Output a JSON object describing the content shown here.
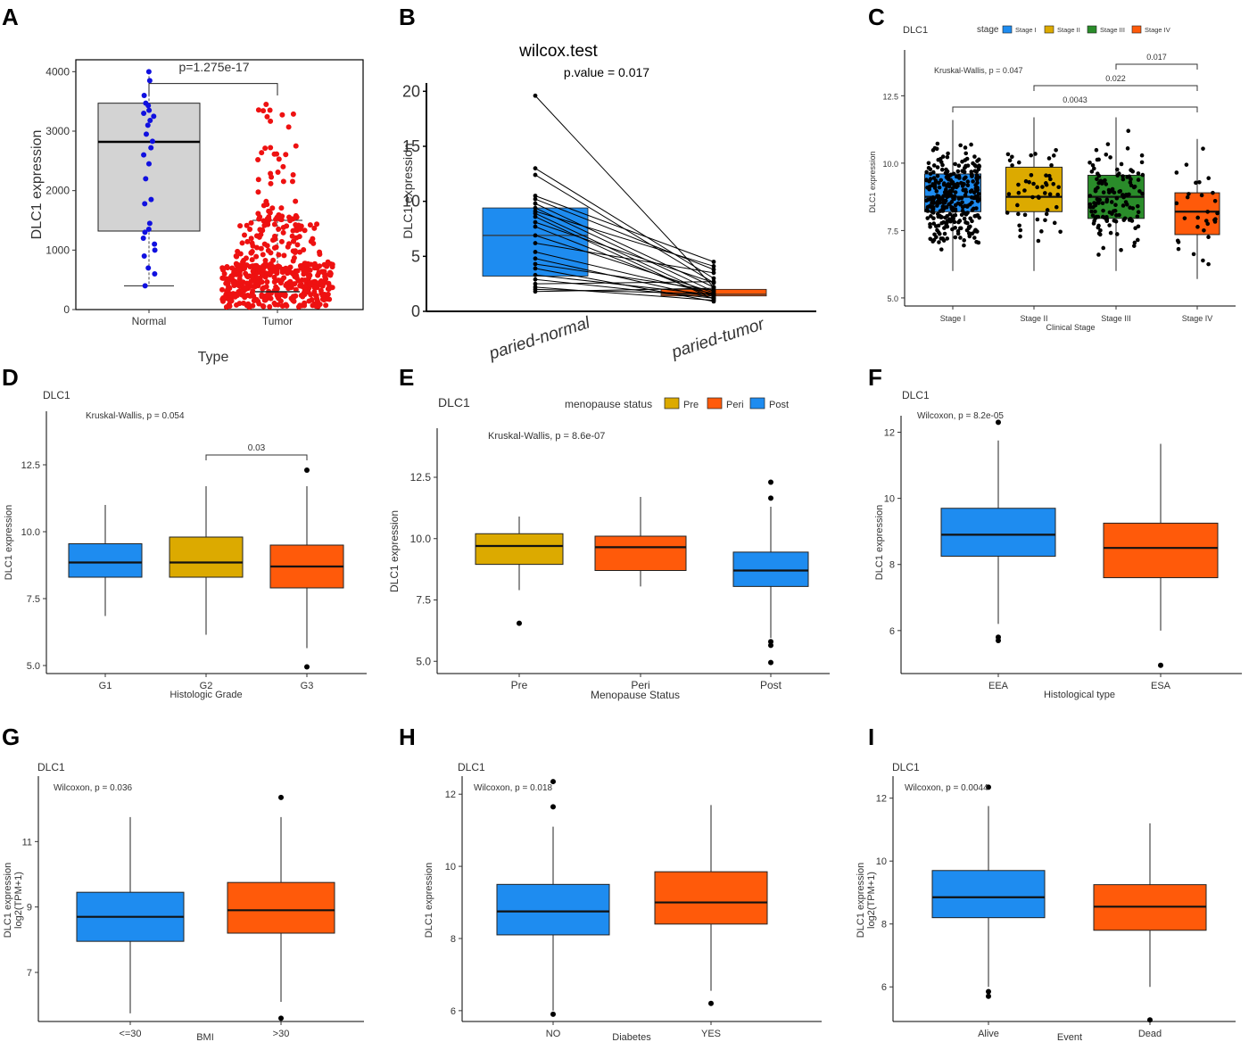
{
  "chart_data": [
    {
      "panel": "A",
      "type": "box",
      "ylabel": "DLC1 expression",
      "xlabel": "Type",
      "categories": [
        "Normal",
        "Tumor"
      ],
      "ylim": [
        0,
        4200
      ],
      "yticks": [
        0,
        1000,
        2000,
        3000,
        4000
      ],
      "boxes": [
        {
          "q1": 1320,
          "median": 2820,
          "q3": 3470,
          "lo": 400,
          "hi": 4000,
          "color": "#d3d3d3"
        },
        {
          "q1": 120,
          "median": 300,
          "q3": 760,
          "lo": 20,
          "hi": 1500,
          "color": null
        }
      ],
      "point_colors": [
        "#1010e0",
        "#ee1111"
      ],
      "annotations": [
        {
          "text": "p=1.275e-17"
        }
      ]
    },
    {
      "panel": "B",
      "type": "paired-box",
      "title": "wilcox.test",
      "subtitle": "p.value = 0.017",
      "ylabel": "DLC1 expression",
      "categories": [
        "paried-normal",
        "paried-tumor"
      ],
      "ylim": [
        0,
        21
      ],
      "yticks": [
        0,
        5,
        10,
        15,
        20
      ],
      "boxes": [
        {
          "q1": 3.2,
          "median": 6.9,
          "q3": 9.4,
          "color": "#1e8cf0"
        },
        {
          "q1": 1.4,
          "median": 1.55,
          "q3": 2.0,
          "color": "#ff5a0a"
        }
      ],
      "pairs": [
        [
          19.6,
          2.2
        ],
        [
          13.0,
          3.0
        ],
        [
          12.4,
          2.6
        ],
        [
          10.5,
          4.5
        ],
        [
          10.2,
          3.8
        ],
        [
          9.8,
          2.2
        ],
        [
          9.4,
          1.8
        ],
        [
          9.1,
          4.1
        ],
        [
          8.9,
          1.4
        ],
        [
          8.6,
          1.1
        ],
        [
          8.1,
          2.6
        ],
        [
          7.7,
          1.3
        ],
        [
          6.9,
          1.7
        ],
        [
          6.2,
          3.5
        ],
        [
          5.4,
          1.6
        ],
        [
          4.8,
          1.2
        ],
        [
          4.3,
          1.9
        ],
        [
          3.9,
          0.9
        ],
        [
          3.3,
          1.5
        ],
        [
          2.9,
          1.2
        ],
        [
          2.5,
          2.7
        ],
        [
          2.2,
          1.0
        ],
        [
          2.0,
          1.6
        ],
        [
          1.8,
          2.1
        ]
      ]
    },
    {
      "panel": "C",
      "type": "box",
      "title": "DLC1",
      "ylabel": "DLC1 expression",
      "xlabel": "Clinical Stage",
      "legend_title": "stage",
      "legend": [
        "Stage I",
        "Stage II",
        "Stage III",
        "Stage IV"
      ],
      "categories": [
        "Stage I",
        "Stage II",
        "Stage III",
        "Stage IV"
      ],
      "ylim": [
        4.7,
        14.2
      ],
      "yticks": [
        5.0,
        7.5,
        10.0,
        12.5
      ],
      "ytick_labels": [
        "5.0",
        "7.5",
        "10.0",
        "12.5"
      ],
      "boxes": [
        {
          "q1": 8.2,
          "median": 8.75,
          "q3": 9.6,
          "lo": 6.0,
          "hi": 11.6,
          "color": "#1e8cf0"
        },
        {
          "q1": 8.2,
          "median": 8.75,
          "q3": 9.85,
          "lo": 6.0,
          "hi": 11.7,
          "color": "#dcaa00"
        },
        {
          "q1": 7.95,
          "median": 8.75,
          "q3": 9.55,
          "lo": 6.0,
          "hi": 11.7,
          "color": "#2a8c2a"
        },
        {
          "q1": 7.35,
          "median": 8.2,
          "q3": 8.9,
          "lo": 5.7,
          "hi": 10.9,
          "color": "#ff5a0a"
        }
      ],
      "point_counts": [
        320,
        50,
        130,
        30
      ],
      "annotations": [
        {
          "text": "Kruskal-Wallis, p = 0.047"
        }
      ],
      "brackets": [
        {
          "from": 3,
          "to": 4,
          "label": "0.017"
        },
        {
          "from": 2,
          "to": 4,
          "label": "0.022"
        },
        {
          "from": 1,
          "to": 4,
          "label": "0.0043"
        }
      ]
    },
    {
      "panel": "D",
      "type": "box",
      "title": "DLC1",
      "ylabel": "DLC1 expression",
      "xlabel": "Histologic Grade",
      "categories": [
        "G1",
        "G2",
        "G3"
      ],
      "ylim": [
        4.7,
        14.5
      ],
      "yticks": [
        5.0,
        7.5,
        10.0,
        12.5
      ],
      "ytick_labels": [
        "5.0",
        "7.5",
        "10.0",
        "12.5"
      ],
      "boxes": [
        {
          "q1": 8.3,
          "median": 8.85,
          "q3": 9.55,
          "lo": 6.85,
          "hi": 11.0,
          "color": "#1e8cf0",
          "outliers": []
        },
        {
          "q1": 8.3,
          "median": 8.85,
          "q3": 9.8,
          "lo": 6.15,
          "hi": 11.7,
          "color": "#dcaa00",
          "outliers": []
        },
        {
          "q1": 7.9,
          "median": 8.7,
          "q3": 9.5,
          "lo": 5.65,
          "hi": 11.7,
          "color": "#ff5a0a",
          "outliers": [
            12.3,
            4.95
          ]
        }
      ],
      "annotations": [
        {
          "text": "Kruskal-Wallis, p = 0.054"
        }
      ],
      "brackets": [
        {
          "from": 2,
          "to": 3,
          "label": "0.03"
        }
      ]
    },
    {
      "panel": "E",
      "type": "box",
      "title": "DLC1",
      "ylabel": "DLC1 expression",
      "xlabel": "Menopause Status",
      "legend_title": "menopause status",
      "legend": [
        "Pre",
        "Peri",
        "Post"
      ],
      "categories": [
        "Pre",
        "Peri",
        "Post"
      ],
      "ylim": [
        4.5,
        14.5
      ],
      "yticks": [
        5.0,
        7.5,
        10.0,
        12.5
      ],
      "ytick_labels": [
        "5.0",
        "7.5",
        "10.0",
        "12.5"
      ],
      "boxes": [
        {
          "q1": 8.95,
          "median": 9.7,
          "q3": 10.2,
          "lo": 7.9,
          "hi": 10.9,
          "color": "#dcaa00",
          "outliers": [
            6.55
          ]
        },
        {
          "q1": 8.7,
          "median": 9.65,
          "q3": 10.1,
          "lo": 8.05,
          "hi": 11.7,
          "color": "#ff5a0a",
          "outliers": []
        },
        {
          "q1": 8.05,
          "median": 8.7,
          "q3": 9.45,
          "lo": 5.95,
          "hi": 11.3,
          "color": "#1e8cf0",
          "outliers": [
            12.3,
            11.65,
            5.8,
            5.65,
            4.95
          ]
        }
      ],
      "annotations": [
        {
          "text": "Kruskal-Wallis, p = 8.6e-07"
        }
      ]
    },
    {
      "panel": "F",
      "type": "box",
      "title": "DLC1",
      "ylabel": "DLC1 expression",
      "xlabel": "Histological type",
      "categories": [
        "EEA",
        "ESA"
      ],
      "ylim": [
        4.7,
        12.5
      ],
      "yticks": [
        6,
        8,
        10,
        12
      ],
      "ytick_labels": [
        "6",
        "8",
        "10",
        "12"
      ],
      "boxes": [
        {
          "q1": 8.25,
          "median": 8.9,
          "q3": 9.7,
          "lo": 6.2,
          "hi": 11.75,
          "color": "#1e8cf0",
          "outliers": [
            12.3,
            5.8,
            5.7
          ]
        },
        {
          "q1": 7.6,
          "median": 8.5,
          "q3": 9.25,
          "lo": 6.0,
          "hi": 11.65,
          "color": "#ff5a0a",
          "outliers": [
            4.95
          ]
        }
      ],
      "annotations": [
        {
          "text": "Wilcoxon, p = 8.2e-05"
        }
      ]
    },
    {
      "panel": "G",
      "type": "box",
      "title": "DLC1",
      "ylabel": "DLC1 expression",
      "ylabel2": "log2(TPM+1)",
      "xlabel": "BMI",
      "categories": [
        "<=30",
        ">30"
      ],
      "ylim": [
        5.5,
        13.0
      ],
      "yticks": [
        7,
        9,
        11
      ],
      "ytick_labels": [
        "7",
        "9",
        "11"
      ],
      "boxes": [
        {
          "q1": 7.95,
          "median": 8.7,
          "q3": 9.45,
          "lo": 5.75,
          "hi": 11.75,
          "color": "#1e8cf0",
          "outliers": []
        },
        {
          "q1": 8.2,
          "median": 8.9,
          "q3": 9.75,
          "lo": 6.1,
          "hi": 11.75,
          "color": "#ff5a0a",
          "outliers": [
            12.35,
            5.6
          ]
        }
      ],
      "annotations": [
        {
          "text": "Wilcoxon, p = 0.036"
        }
      ]
    },
    {
      "panel": "H",
      "type": "box",
      "title": "DLC1",
      "ylabel": "DLC1 expression",
      "xlabel": "Diabetes",
      "categories": [
        "NO",
        "YES"
      ],
      "ylim": [
        5.7,
        12.5
      ],
      "yticks": [
        6,
        8,
        10,
        12
      ],
      "ytick_labels": [
        "6",
        "8",
        "10",
        "12"
      ],
      "boxes": [
        {
          "q1": 8.1,
          "median": 8.75,
          "q3": 9.5,
          "lo": 6.0,
          "hi": 11.1,
          "color": "#1e8cf0",
          "outliers": [
            12.35,
            11.65,
            5.9
          ]
        },
        {
          "q1": 8.4,
          "median": 9.0,
          "q3": 9.85,
          "lo": 6.55,
          "hi": 11.7,
          "color": "#ff5a0a",
          "outliers": [
            6.2
          ]
        }
      ],
      "annotations": [
        {
          "text": "Wilcoxon, p = 0.018"
        }
      ]
    },
    {
      "panel": "I",
      "type": "box",
      "title": "DLC1",
      "ylabel": "DLC1 expression",
      "ylabel2": "log2(TPM+1)",
      "xlabel": "Event",
      "categories": [
        "Alive",
        "Dead"
      ],
      "ylim": [
        4.9,
        12.7
      ],
      "yticks": [
        6,
        8,
        10,
        12
      ],
      "ytick_labels": [
        "6",
        "8",
        "10",
        "12"
      ],
      "boxes": [
        {
          "q1": 8.2,
          "median": 8.85,
          "q3": 9.7,
          "lo": 6.0,
          "hi": 11.75,
          "color": "#1e8cf0",
          "outliers": [
            12.35,
            5.85,
            5.7
          ]
        },
        {
          "q1": 7.8,
          "median": 8.55,
          "q3": 9.25,
          "lo": 6.0,
          "hi": 11.2,
          "color": "#ff5a0a",
          "outliers": [
            4.95
          ]
        }
      ],
      "annotations": [
        {
          "text": "Wilcoxon, p = 0.0044"
        }
      ]
    }
  ]
}
